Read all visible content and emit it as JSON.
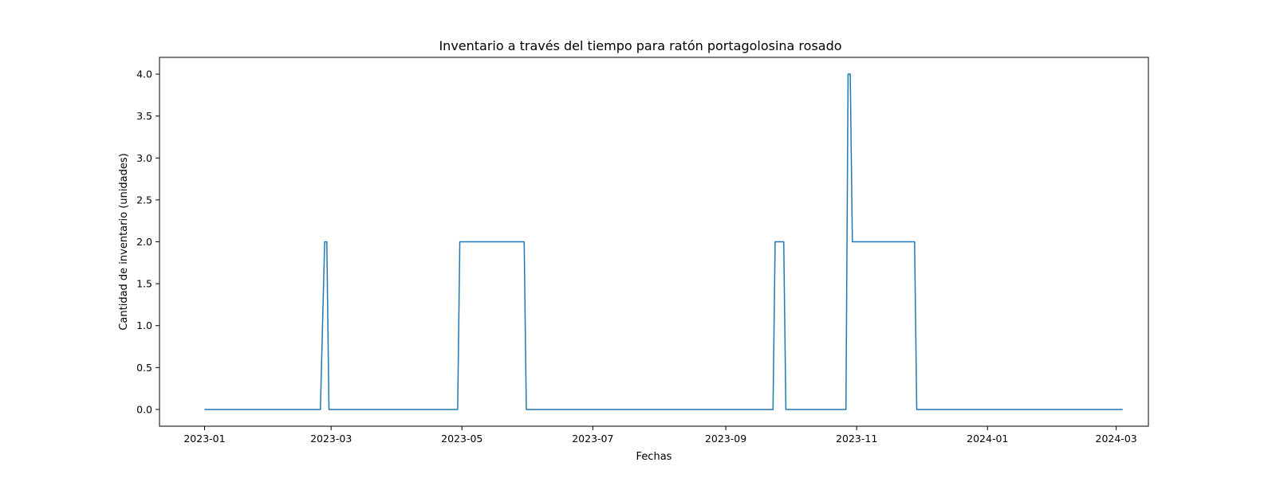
{
  "chart_data": {
    "type": "line",
    "title": "Inventario a través del tiempo para ratón portagolosina rosado",
    "xlabel": "Fechas",
    "ylabel": "Cantidad de inventario (unidades)",
    "xlim": [
      "2022-12-11",
      "2024-03-16"
    ],
    "ylim": [
      -0.2,
      4.2
    ],
    "x_ticks": [
      "2023-01",
      "2023-03",
      "2023-05",
      "2023-07",
      "2023-09",
      "2023-11",
      "2024-01",
      "2024-03"
    ],
    "y_ticks": [
      "0.0",
      "0.5",
      "1.0",
      "1.5",
      "2.0",
      "2.5",
      "3.0",
      "3.5",
      "4.0"
    ],
    "grid": false,
    "series": [
      {
        "color": "#1f77b4",
        "x": [
          "2023-01-01",
          "2023-02-24",
          "2023-02-26",
          "2023-02-27",
          "2023-02-28",
          "2023-04-29",
          "2023-04-30",
          "2023-05-30",
          "2023-05-31",
          "2023-09-23",
          "2023-09-24",
          "2023-09-28",
          "2023-09-29",
          "2023-10-27",
          "2023-10-28",
          "2023-10-29",
          "2023-10-30",
          "2023-11-28",
          "2023-11-29",
          "2024-03-04"
        ],
        "values": [
          0,
          0,
          2,
          2,
          0,
          0,
          2,
          2,
          0,
          0,
          2,
          2,
          0,
          0,
          4,
          4,
          2,
          2,
          0,
          0
        ]
      }
    ]
  }
}
